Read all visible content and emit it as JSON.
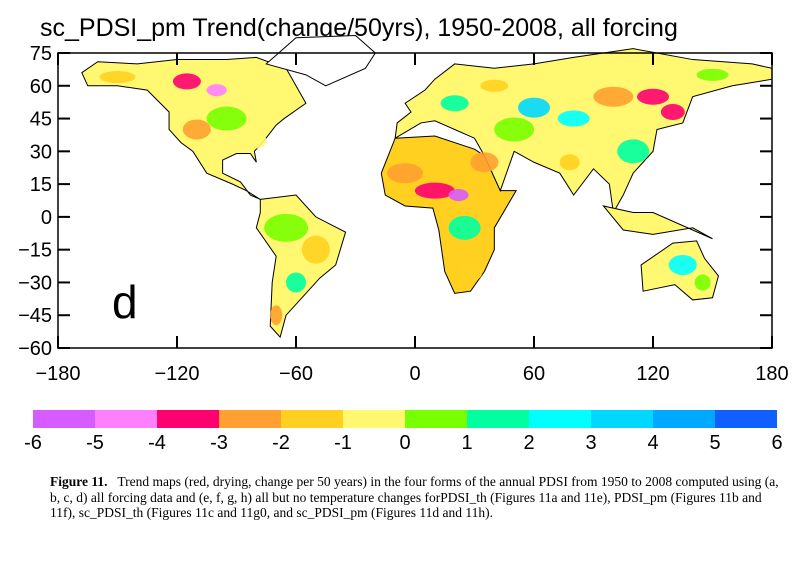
{
  "title": "sc_PDSI_pm Trend(change/50yrs), 1950-2008, all forcing",
  "panel_label": "d",
  "chart_data": {
    "type": "map",
    "title": "sc_PDSI_pm Trend(change/50yrs), 1950-2008, all forcing",
    "xlim": [
      -180,
      180
    ],
    "ylim": [
      -60,
      75
    ],
    "x_ticks": [
      "-180",
      "-120",
      "-60",
      "0",
      "60",
      "120",
      "180"
    ],
    "y_ticks": [
      "75",
      "60",
      "45",
      "30",
      "15",
      "0",
      "-15",
      "-30",
      "-45",
      "-60"
    ],
    "colorbar": {
      "ticks": [
        "-6",
        "-5",
        "-4",
        "-3",
        "-2",
        "-1",
        "0",
        "1",
        "2",
        "3",
        "4",
        "5",
        "6"
      ],
      "colors": [
        "#d75cff",
        "#ff80ff",
        "#ff0070",
        "#ffa030",
        "#ffd020",
        "#fff870",
        "#78ff00",
        "#00ffa0",
        "#00ffff",
        "#00d8ff",
        "#00a8ff",
        "#1060ff"
      ]
    }
  },
  "caption": {
    "label": "Figure 11.",
    "text": "Trend maps (red, drying, change per 50 years) in the four forms of the annual PDSI from 1950 to 2008 computed using (a, b, c, d) all forcing data and (e, f, g, h) all but no temperature changes forPDSI_th (Figures 11a and 11e), PDSI_pm (Figures 11b and 11f), sc_PDSI_th (Figures 11c and 11g0, and sc_PDSI_pm (Figures 11d and 11h)."
  }
}
